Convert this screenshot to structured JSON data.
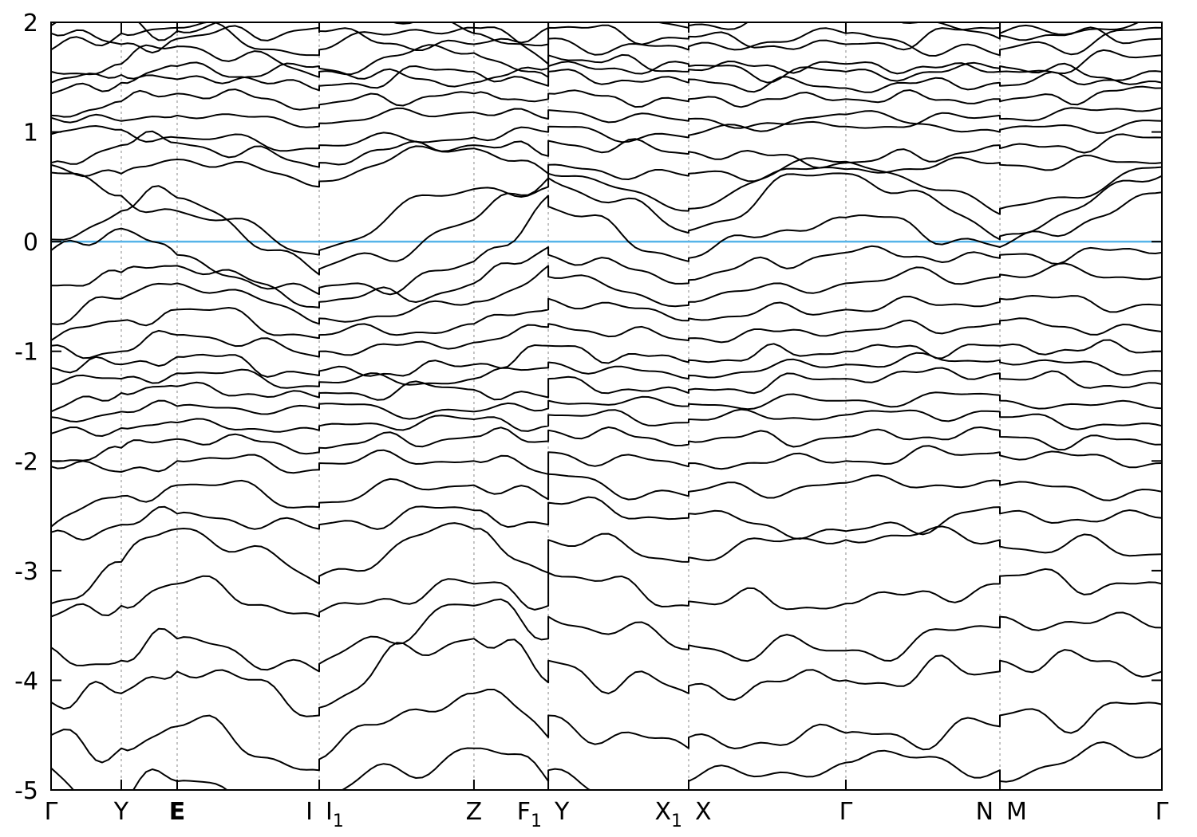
{
  "chart_data": {
    "type": "line",
    "subtype": "band-structure",
    "title": "",
    "xlabel": "",
    "ylabel": "",
    "ylim": [
      -5,
      2
    ],
    "yticks": [
      2,
      1,
      0,
      -1,
      -2,
      -3,
      -4,
      -5
    ],
    "fermi_level": 0,
    "grid_vertical_dashed": true,
    "legend": "none",
    "colors": {
      "band": "#000000",
      "fermi": "#56b4e9",
      "grid": "#aaaaaa",
      "frame": "#000000",
      "text": "#000000"
    },
    "kpoints": [
      {
        "labels": [
          "Γ"
        ],
        "x": 0.0
      },
      {
        "labels": [
          "Y"
        ],
        "x": 0.0632
      },
      {
        "labels": [
          "E"
        ],
        "x": 0.1135,
        "bold": true
      },
      {
        "labels": [
          "I",
          "I_1"
        ],
        "x": 0.2414
      },
      {
        "labels": [
          "Z"
        ],
        "x": 0.3807
      },
      {
        "labels": [
          "F_1",
          "Y"
        ],
        "x": 0.4476
      },
      {
        "labels": [
          "X_1",
          "X"
        ],
        "x": 0.574
      },
      {
        "labels": [
          "Γ"
        ],
        "x": 0.7155
      },
      {
        "labels": [
          "N",
          "M"
        ],
        "x": 0.8542
      },
      {
        "labels": [
          "Γ"
        ],
        "x": 1.0
      }
    ],
    "anchor_x": [
      0.0,
      0.0632,
      0.1135,
      0.2414,
      0.2414,
      0.3807,
      0.4476,
      0.4476,
      0.574,
      0.574,
      0.7155,
      0.8542,
      0.8542,
      1.0
    ],
    "bands": [
      {
        "e": [
          1.97,
          2.05,
          1.92,
          2.3,
          2.2,
          1.9,
          1.8,
          2.1,
          1.95,
          1.97,
          2.2,
          1.85,
          1.9,
          2.05
        ],
        "w": [
          0.1,
          6,
          0.1
        ]
      },
      {
        "e": [
          1.9,
          1.8,
          1.85,
          1.95,
          1.92,
          1.8,
          1.95,
          1.95,
          1.85,
          1.87,
          1.8,
          1.95,
          1.88,
          1.85
        ],
        "w": [
          0.07,
          9,
          0.9
        ]
      },
      {
        "e": [
          1.75,
          1.9,
          1.95,
          1.7,
          1.75,
          1.95,
          1.62,
          1.85,
          1.75,
          1.78,
          1.9,
          1.7,
          1.75,
          1.95
        ],
        "w": [
          0.09,
          7,
          0.3
        ]
      },
      {
        "e": [
          1.55,
          1.62,
          1.78,
          1.5,
          1.55,
          1.72,
          1.5,
          1.6,
          1.62,
          1.6,
          1.55,
          1.58,
          1.55,
          1.7
        ],
        "w": [
          0.08,
          8,
          0.6
        ]
      },
      {
        "e": [
          1.45,
          1.52,
          1.48,
          1.6,
          1.58,
          1.45,
          1.58,
          1.7,
          1.55,
          1.57,
          1.62,
          1.55,
          1.6,
          1.45
        ],
        "w": [
          0.06,
          10,
          0.1
        ]
      },
      {
        "e": [
          1.35,
          1.45,
          1.6,
          1.38,
          1.42,
          1.55,
          1.42,
          1.55,
          1.45,
          1.48,
          1.4,
          1.45,
          1.42,
          1.55
        ],
        "w": [
          0.07,
          9,
          0.2
        ]
      },
      {
        "e": [
          1.15,
          1.28,
          1.35,
          1.22,
          1.25,
          1.35,
          1.3,
          1.35,
          1.28,
          1.3,
          1.3,
          1.3,
          1.28,
          1.4
        ],
        "w": [
          0.06,
          10,
          0.5
        ]
      },
      {
        "e": [
          1.13,
          1.1,
          1.15,
          1.05,
          1.08,
          1.18,
          1.12,
          1.2,
          1.1,
          1.12,
          1.05,
          1.15,
          1.12,
          1.22
        ],
        "w": [
          0.05,
          8,
          0.8
        ]
      },
      {
        "e": [
          0.98,
          1.02,
          0.95,
          0.85,
          0.88,
          0.95,
          1.0,
          1.05,
          0.95,
          0.97,
          1.16,
          1.0,
          1.02,
          1.1
        ],
        "w": [
          0.06,
          7,
          0.15
        ]
      },
      {
        "e": [
          0.72,
          0.88,
          0.9,
          0.68,
          0.72,
          0.88,
          0.78,
          0.92,
          0.8,
          0.82,
          0.72,
          0.88,
          0.85,
          0.95
        ],
        "w": [
          0.07,
          9,
          0.45
        ]
      },
      {
        "e": [
          0.7,
          0.62,
          0.75,
          0.5,
          0.55,
          0.85,
          0.62,
          0.7,
          0.6,
          0.62,
          0.66,
          0.72,
          0.7,
          0.72
        ],
        "w": [
          0.06,
          8,
          0.7
        ]
      },
      {
        "e": [
          0.63,
          0.42,
          0.28,
          -0.12,
          -0.08,
          0.48,
          0.5,
          0.62,
          0.28,
          0.3,
          0.73,
          0.25,
          0.3,
          0.68
        ],
        "w": [
          0.08,
          6,
          0.25
        ]
      },
      {
        "e": [
          0.02,
          0.28,
          0.4,
          -0.3,
          -0.25,
          0.2,
          0.58,
          0.58,
          0.08,
          0.1,
          0.62,
          0.02,
          0.05,
          0.6
        ],
        "w": [
          0.09,
          7,
          0.55
        ]
      },
      {
        "e": [
          -0.08,
          0.12,
          -0.12,
          -0.48,
          -0.42,
          -0.18,
          0.42,
          0.32,
          -0.18,
          -0.15,
          0.22,
          -0.05,
          -0.05,
          0.45
        ],
        "w": [
          0.08,
          8,
          0.35
        ]
      },
      {
        "e": [
          -0.4,
          -0.28,
          -0.22,
          -0.6,
          -0.55,
          -0.38,
          -0.05,
          -0.12,
          -0.38,
          -0.35,
          -0.1,
          -0.15,
          -0.12,
          -0.1
        ],
        "w": [
          0.07,
          9,
          0.65
        ]
      },
      {
        "e": [
          -0.75,
          -0.52,
          -0.38,
          -0.75,
          -0.7,
          -0.55,
          -0.22,
          -0.32,
          -0.58,
          -0.55,
          -0.38,
          -0.32,
          -0.3,
          -0.32
        ],
        "w": [
          0.08,
          7,
          0.85
        ]
      },
      {
        "e": [
          -0.9,
          -0.72,
          -0.62,
          -0.88,
          -0.85,
          -0.75,
          -0.62,
          -0.52,
          -0.72,
          -0.7,
          -0.62,
          -0.55,
          -0.52,
          -0.58
        ],
        "w": [
          0.07,
          8,
          0.05
        ]
      },
      {
        "e": [
          -0.95,
          -1.0,
          -0.85,
          -1.05,
          -1.0,
          -0.92,
          -0.78,
          -0.75,
          -0.9,
          -0.88,
          -0.82,
          -0.75,
          -0.72,
          -0.82
        ],
        "w": [
          0.06,
          9,
          0.4
        ]
      },
      {
        "e": [
          -1.15,
          -1.12,
          -1.05,
          -1.22,
          -1.18,
          -1.12,
          -0.95,
          -0.95,
          -1.1,
          -1.08,
          -1.0,
          -0.95,
          -0.95,
          -1.0
        ],
        "w": [
          0.07,
          10,
          0.75
        ]
      },
      {
        "e": [
          -1.3,
          -1.25,
          -1.2,
          -1.32,
          -1.28,
          -1.25,
          -1.15,
          -1.1,
          -1.25,
          -1.22,
          -1.12,
          -1.08,
          -1.1,
          -1.18
        ],
        "w": [
          0.06,
          8,
          0.95
        ]
      },
      {
        "e": [
          -1.55,
          -1.38,
          -1.32,
          -1.42,
          -1.38,
          -1.35,
          -1.42,
          -1.25,
          -1.38,
          -1.35,
          -1.25,
          -1.2,
          -1.25,
          -1.3
        ],
        "w": [
          0.07,
          9,
          0.18
        ]
      },
      {
        "e": [
          -1.6,
          -1.55,
          -1.5,
          -1.52,
          -1.48,
          -1.55,
          -1.52,
          -1.45,
          -1.5,
          -1.48,
          -1.45,
          -1.4,
          -1.45,
          -1.52
        ],
        "w": [
          0.06,
          7,
          0.5
        ]
      },
      {
        "e": [
          -1.75,
          -1.7,
          -1.65,
          -1.72,
          -1.68,
          -1.62,
          -1.68,
          -1.58,
          -1.65,
          -1.62,
          -1.58,
          -1.55,
          -1.6,
          -1.68
        ],
        "w": [
          0.06,
          8,
          0.28
        ]
      },
      {
        "e": [
          -2.0,
          -1.88,
          -1.8,
          -1.92,
          -1.88,
          -1.78,
          -1.82,
          -1.72,
          -1.85,
          -1.82,
          -1.78,
          -1.72,
          -1.78,
          -1.85
        ],
        "w": [
          0.07,
          9,
          0.62
        ]
      },
      {
        "e": [
          -2.05,
          -2.1,
          -2.0,
          -2.08,
          -2.02,
          -2.0,
          -2.12,
          -1.92,
          -2.05,
          -2.02,
          -2.0,
          -1.92,
          -1.95,
          -2.02
        ],
        "w": [
          0.07,
          8,
          0.9
        ]
      },
      {
        "e": [
          -2.6,
          -2.32,
          -2.22,
          -2.42,
          -2.38,
          -2.22,
          -2.35,
          -2.12,
          -2.32,
          -2.28,
          -2.2,
          -2.18,
          -2.22,
          -2.28
        ],
        "w": [
          0.08,
          7,
          0.12
        ]
      },
      {
        "e": [
          -2.65,
          -2.58,
          -2.48,
          -2.62,
          -2.58,
          -2.45,
          -2.58,
          -2.38,
          -2.52,
          -2.48,
          -2.64,
          -2.42,
          -2.48,
          -2.52
        ],
        "w": [
          0.08,
          8,
          0.42
        ]
      },
      {
        "e": [
          -3.3,
          -2.92,
          -2.62,
          -3.12,
          -3.05,
          -2.62,
          -3.02,
          -2.72,
          -2.92,
          -2.88,
          -2.72,
          -2.72,
          -2.78,
          -2.85
        ],
        "w": [
          0.1,
          7,
          0.72
        ]
      },
      {
        "e": [
          -3.42,
          -3.32,
          -3.12,
          -3.42,
          -3.38,
          -3.12,
          -3.32,
          -3.02,
          -3.32,
          -3.28,
          -3.3,
          -3.12,
          -3.05,
          -3.12
        ],
        "w": [
          0.1,
          8,
          0.22
        ]
      },
      {
        "e": [
          -3.7,
          -3.82,
          -3.62,
          -3.92,
          -3.85,
          -3.32,
          -3.62,
          -3.42,
          -3.72,
          -3.68,
          -3.73,
          -3.52,
          -3.42,
          -3.52
        ],
        "w": [
          0.12,
          7,
          0.52
        ]
      },
      {
        "e": [
          -4.2,
          -4.12,
          -3.92,
          -4.32,
          -4.25,
          -3.62,
          -4.02,
          -3.82,
          -4.12,
          -4.05,
          -4.0,
          -3.92,
          -3.82,
          -3.92
        ],
        "w": [
          0.13,
          8,
          0.82
        ]
      },
      {
        "e": [
          -4.5,
          -4.62,
          -4.42,
          -4.82,
          -4.72,
          -4.12,
          -4.52,
          -4.32,
          -4.62,
          -4.52,
          -4.48,
          -4.42,
          -4.32,
          -4.22
        ],
        "w": [
          0.14,
          7,
          0.32
        ]
      },
      {
        "e": [
          -4.8,
          -5.12,
          -4.92,
          -5.22,
          -5.12,
          -4.62,
          -4.92,
          -4.82,
          -5.02,
          -4.92,
          -4.75,
          -4.82,
          -4.92,
          -4.62
        ],
        "w": [
          0.15,
          6,
          0.68
        ]
      }
    ]
  }
}
